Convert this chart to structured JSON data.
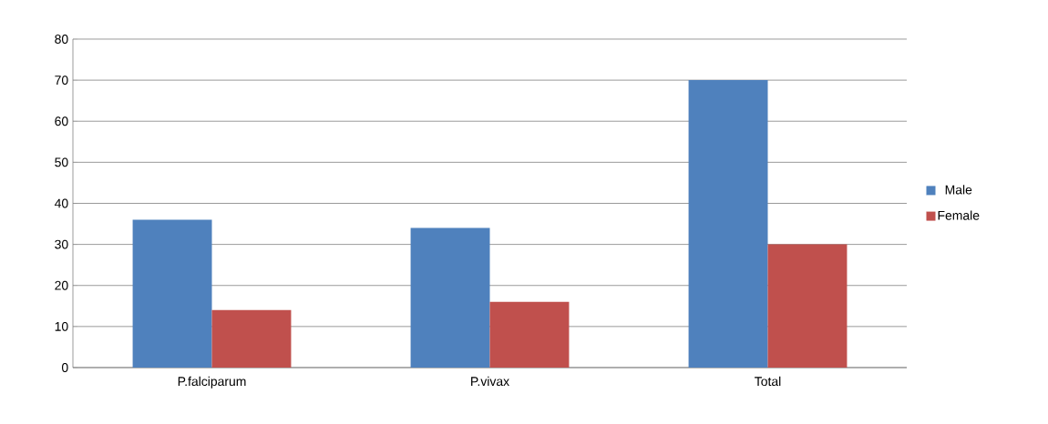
{
  "chart_data": {
    "type": "bar",
    "categories": [
      "P.falciparum",
      "P.vivax",
      "Total"
    ],
    "series": [
      {
        "name": "Male",
        "color": "#4f81bd",
        "values": [
          36,
          34,
          70
        ]
      },
      {
        "name": "Female",
        "color": "#c0504d",
        "values": [
          14,
          16,
          30
        ]
      }
    ],
    "ylim": [
      0,
      80
    ],
    "yticks": [
      0,
      10,
      20,
      30,
      40,
      50,
      60,
      70,
      80
    ],
    "grid": "y",
    "legend": "right"
  }
}
